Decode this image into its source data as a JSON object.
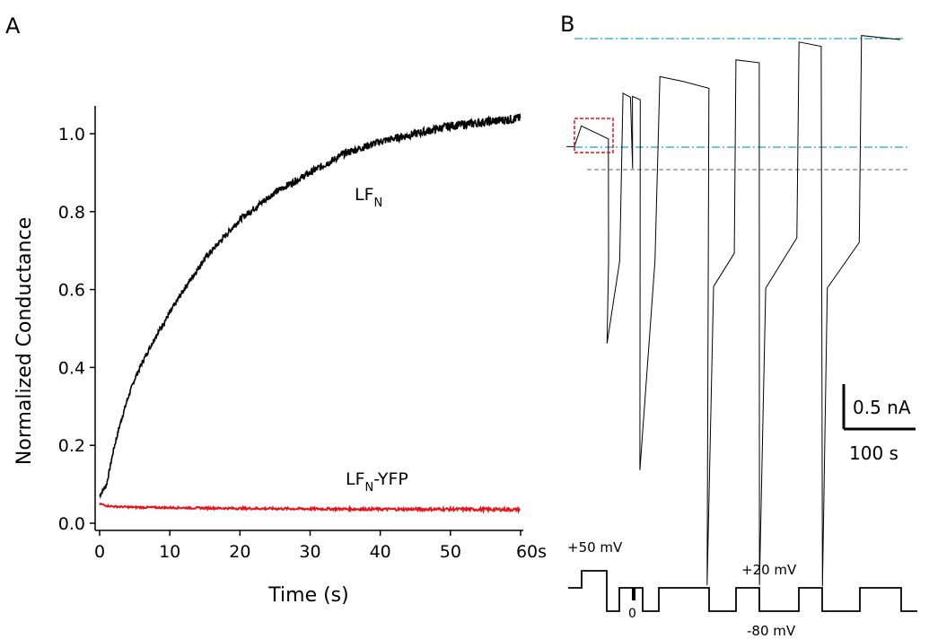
{
  "panel_a": {
    "letter": "A",
    "ylabel": "Normalized Conductance",
    "xlabel": "Time (s)",
    "x_ticks": [
      "0",
      "10",
      "20",
      "30",
      "40",
      "50",
      "60s"
    ],
    "y_ticks": [
      "0.0",
      "0.2",
      "0.4",
      "0.6",
      "0.8",
      "1.0"
    ],
    "label_lfn_main": "LF",
    "label_lfn_sub": "N",
    "label_yfp_main": "LF",
    "label_yfp_sub": "N",
    "label_yfp_suffix": "-YFP"
  },
  "panel_b": {
    "letter": "B",
    "scale_current": "0.5 nA",
    "scale_time": "100 s",
    "v_plus50": "+50 mV",
    "v_plus20": "+20 mV",
    "v_minus80": "-80 mV",
    "v_zero": "0"
  },
  "colors": {
    "lfn": "#000000",
    "lfn_yfp": "#e8141a",
    "reference_line": "#1aa6c8",
    "zero_line": "#888888",
    "highlight_box": "#e8141a"
  },
  "chart_data": [
    {
      "type": "line",
      "panel": "A",
      "xlabel": "Time (s)",
      "ylabel": "Normalized Conductance",
      "xlim": [
        0,
        60
      ],
      "ylim": [
        0,
        1.07
      ],
      "grid": false,
      "series": [
        {
          "name": "LFN",
          "x": [
            0,
            1,
            2,
            3,
            4,
            5,
            6,
            8,
            10,
            12,
            15,
            18,
            20,
            25,
            30,
            35,
            40,
            45,
            50,
            55,
            60
          ],
          "values": [
            0.07,
            0.1,
            0.19,
            0.26,
            0.32,
            0.37,
            0.41,
            0.48,
            0.54,
            0.6,
            0.68,
            0.74,
            0.78,
            0.85,
            0.9,
            0.95,
            0.98,
            1.0,
            1.02,
            1.03,
            1.04
          ]
        },
        {
          "name": "LFN-YFP",
          "x": [
            0,
            1,
            2,
            5,
            10,
            20,
            30,
            40,
            50,
            60
          ],
          "values": [
            0.05,
            0.045,
            0.043,
            0.041,
            0.04,
            0.038,
            0.037,
            0.036,
            0.036,
            0.035
          ]
        }
      ]
    }
  ]
}
